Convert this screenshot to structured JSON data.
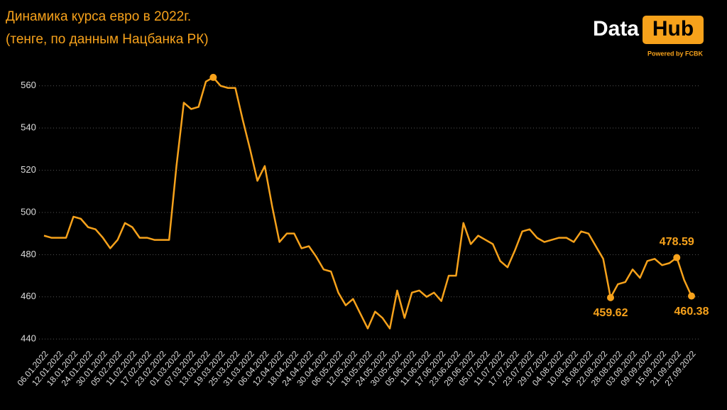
{
  "chart_data": {
    "type": "line",
    "title": "Динамика курса евро в 2022г.",
    "subtitle": "(тенге, по данным Нацбанка РК)",
    "logo": {
      "text": "Data",
      "badge": "Hub",
      "tagline": "Powered by FCBK"
    },
    "categories": [
      "06.01.2022",
      null,
      "12.01.2022",
      null,
      "18.01.2022",
      null,
      "24.01.2022",
      null,
      "30.01.2022",
      null,
      "05.02.2022",
      null,
      "11.02.2022",
      null,
      "17.02.2022",
      null,
      "23.02.2022",
      null,
      "01.03.2022",
      null,
      "07.03.2022",
      null,
      "13.03.2022",
      null,
      "19.03.2022",
      null,
      "25.03.2022",
      null,
      "31.03.2022",
      null,
      "06.04.2022",
      null,
      "12.04.2022",
      null,
      "18.04.2022",
      null,
      "24.04.2022",
      null,
      "30.04.2022",
      null,
      "06.05.2022",
      null,
      "12.05.2022",
      null,
      "18.05.2022",
      null,
      "24.05.2022",
      null,
      "30.05.2022",
      null,
      "05.06.2022",
      null,
      "11.06.2022",
      null,
      "17.06.2022",
      null,
      "23.06.2022",
      null,
      "29.06.2022",
      null,
      "05.07.2022",
      null,
      "11.07.2022",
      null,
      "17.07.2022",
      null,
      "23.07.2022",
      null,
      "29.07.2022",
      null,
      "04.08.2022",
      null,
      "10.08.2022",
      null,
      "16.08.2022",
      null,
      "22.08.2022",
      null,
      "28.08.2022",
      null,
      "03.09.2022",
      null,
      "09.09.2022",
      null,
      "15.09.2022",
      null,
      "21.09.2022",
      null,
      "27.09.2022"
    ],
    "values": [
      489,
      488,
      488,
      488,
      498,
      497,
      493,
      492,
      488,
      483,
      487,
      495,
      493,
      488,
      488,
      487,
      487,
      487,
      522,
      552,
      549,
      550,
      562,
      564,
      560,
      559,
      559,
      544,
      530,
      515,
      522,
      503,
      486,
      490,
      490,
      483,
      484,
      479,
      473,
      472,
      462,
      456,
      459,
      452,
      445,
      453,
      450,
      445,
      463,
      450,
      462,
      463,
      460,
      462,
      458,
      470,
      470,
      495,
      485,
      489,
      487,
      485,
      477,
      474,
      482,
      491,
      492,
      488,
      486,
      487,
      488,
      488,
      486,
      491,
      490,
      484,
      478,
      459.62,
      466,
      467,
      473,
      469,
      477,
      478,
      475,
      476,
      478.59,
      468,
      460.38
    ],
    "color": "#f7a21b",
    "marked_points": [
      23,
      77,
      86,
      88
    ],
    "labeled_points": [
      77,
      86,
      88
    ],
    "ylim": [
      435,
      567
    ],
    "yticks": [
      440,
      460,
      480,
      500,
      520,
      540,
      560
    ],
    "grid": true
  }
}
